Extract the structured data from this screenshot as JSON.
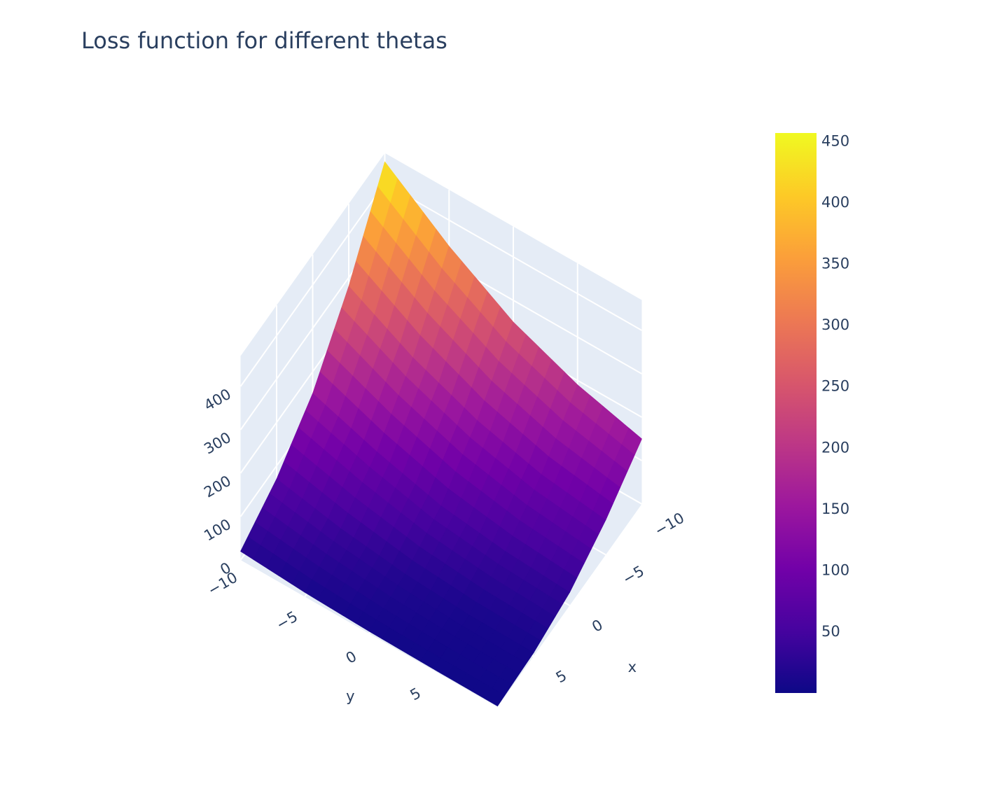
{
  "chart_data": {
    "type": "surface",
    "title": "Loss function for different thetas",
    "x_label": "x",
    "y_label": "y",
    "x": [
      -10,
      -5,
      0,
      5,
      10
    ],
    "y": [
      -10,
      -5,
      0,
      5,
      10
    ],
    "z": [
      [
        450,
        280,
        150,
        70,
        20
      ],
      [
        340,
        200,
        100,
        40,
        10
      ],
      [
        250,
        140,
        60,
        20,
        5
      ],
      [
        190,
        100,
        40,
        10,
        3
      ],
      [
        150,
        80,
        30,
        8,
        2
      ]
    ],
    "xlim": [
      -10,
      10
    ],
    "ylim": [
      -10,
      10
    ],
    "zlim": [
      0,
      470
    ],
    "xticks": [
      {
        "value": -10,
        "label": "−10"
      },
      {
        "value": -5,
        "label": "−5"
      },
      0,
      5
    ],
    "yticks": [
      {
        "value": -10,
        "label": "−10"
      },
      {
        "value": -5,
        "label": "−5"
      },
      0,
      5
    ],
    "zticks": [
      0,
      100,
      200,
      300,
      400
    ],
    "colorbar_range": [
      0.4,
      457
    ],
    "colorbar_ticks": [
      50,
      100,
      150,
      200,
      250,
      300,
      350,
      400,
      450
    ],
    "colorscale": [
      "#0d0887",
      "#46039f",
      "#7201a8",
      "#9c179e",
      "#bd3786",
      "#d8576b",
      "#ed7953",
      "#fb9f3a",
      "#fdca26",
      "#f0f921"
    ],
    "grid": true
  }
}
